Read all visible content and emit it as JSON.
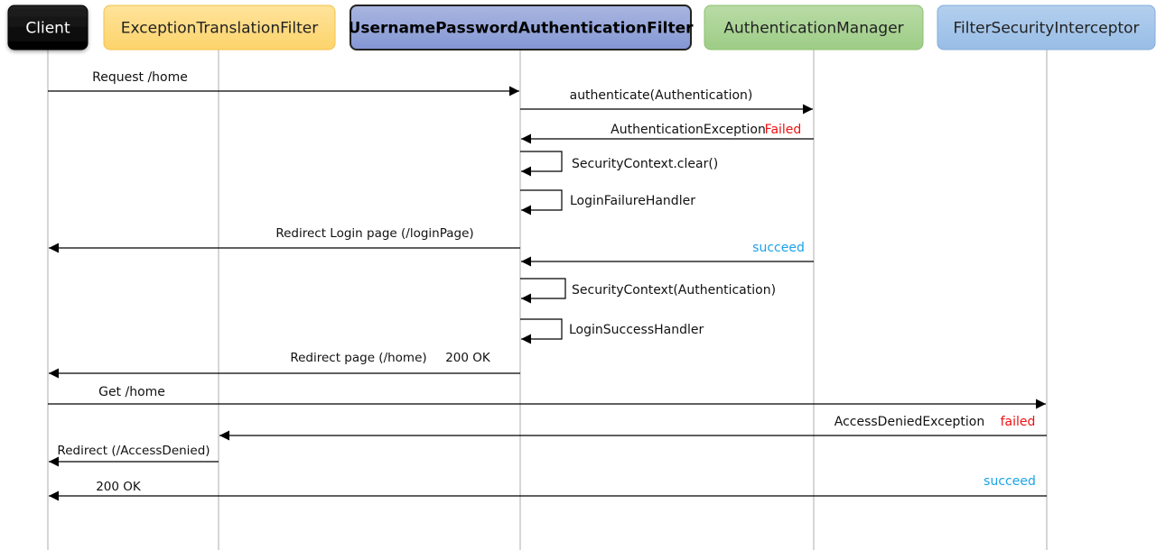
{
  "participants": [
    {
      "name": "Client",
      "fill_top": "#222222",
      "fill_bottom": "#000000",
      "stroke": "#000000",
      "text_color": "#ffffff",
      "bold": false
    },
    {
      "name": "ExceptionTranslationFilter",
      "fill_top": "#fee39a",
      "fill_bottom": "#fdd46c",
      "stroke": "#f2c24a",
      "text_color": "#222222",
      "bold": false
    },
    {
      "name": "UsernamePasswordAuthenticationFilter",
      "fill_top": "#a9b6e0",
      "fill_bottom": "#8497d4",
      "stroke": "#222222",
      "text_color": "#000000",
      "bold": true
    },
    {
      "name": "AuthenticationManager",
      "fill_top": "#b9dba6",
      "fill_bottom": "#9dcd86",
      "stroke": "#8cc06f",
      "text_color": "#222222",
      "bold": false
    },
    {
      "name": "FilterSecurityInterceptor",
      "fill_top": "#b3cfee",
      "fill_bottom": "#98bde6",
      "stroke": "#86acd9",
      "text_color": "#222222",
      "bold": false
    }
  ],
  "colors": {
    "failed": "#ee1111",
    "succeed": "#1aa3e8",
    "line": "#000000",
    "lifeline": "#c8c8c8"
  },
  "messages": [
    {
      "from": 0,
      "to": 2,
      "label": "Request /home"
    },
    {
      "from": 2,
      "to": 3,
      "label": "authenticate(Authentication)"
    },
    {
      "from": 3,
      "to": 2,
      "label": "AuthenticationException",
      "status": "Failed",
      "status_type": "failed"
    },
    {
      "from": 2,
      "to": 2,
      "label": "SecurityContext.clear()"
    },
    {
      "from": 2,
      "to": 2,
      "label": "LoginFailureHandler"
    },
    {
      "from": 2,
      "to": 0,
      "label": "Redirect Login page (/loginPage)"
    },
    {
      "from": 3,
      "to": 2,
      "label": "",
      "status": "succeed",
      "status_type": "succeed"
    },
    {
      "from": 2,
      "to": 2,
      "label": "SecurityContext(Authentication)"
    },
    {
      "from": 2,
      "to": 2,
      "label": "LoginSuccessHandler"
    },
    {
      "from": 2,
      "to": 0,
      "label": "Redirect page (/home)",
      "status": "200 OK",
      "status_type": "plain"
    },
    {
      "from": 0,
      "to": 4,
      "label": "Get /home"
    },
    {
      "from": 4,
      "to": 1,
      "label": "AccessDeniedException",
      "status": "failed",
      "status_type": "failed"
    },
    {
      "from": 1,
      "to": 0,
      "label": "Redirect (/AccessDenied)"
    },
    {
      "from": 4,
      "to": 0,
      "label": "200 OK",
      "status": "succeed",
      "status_type": "succeed"
    }
  ]
}
